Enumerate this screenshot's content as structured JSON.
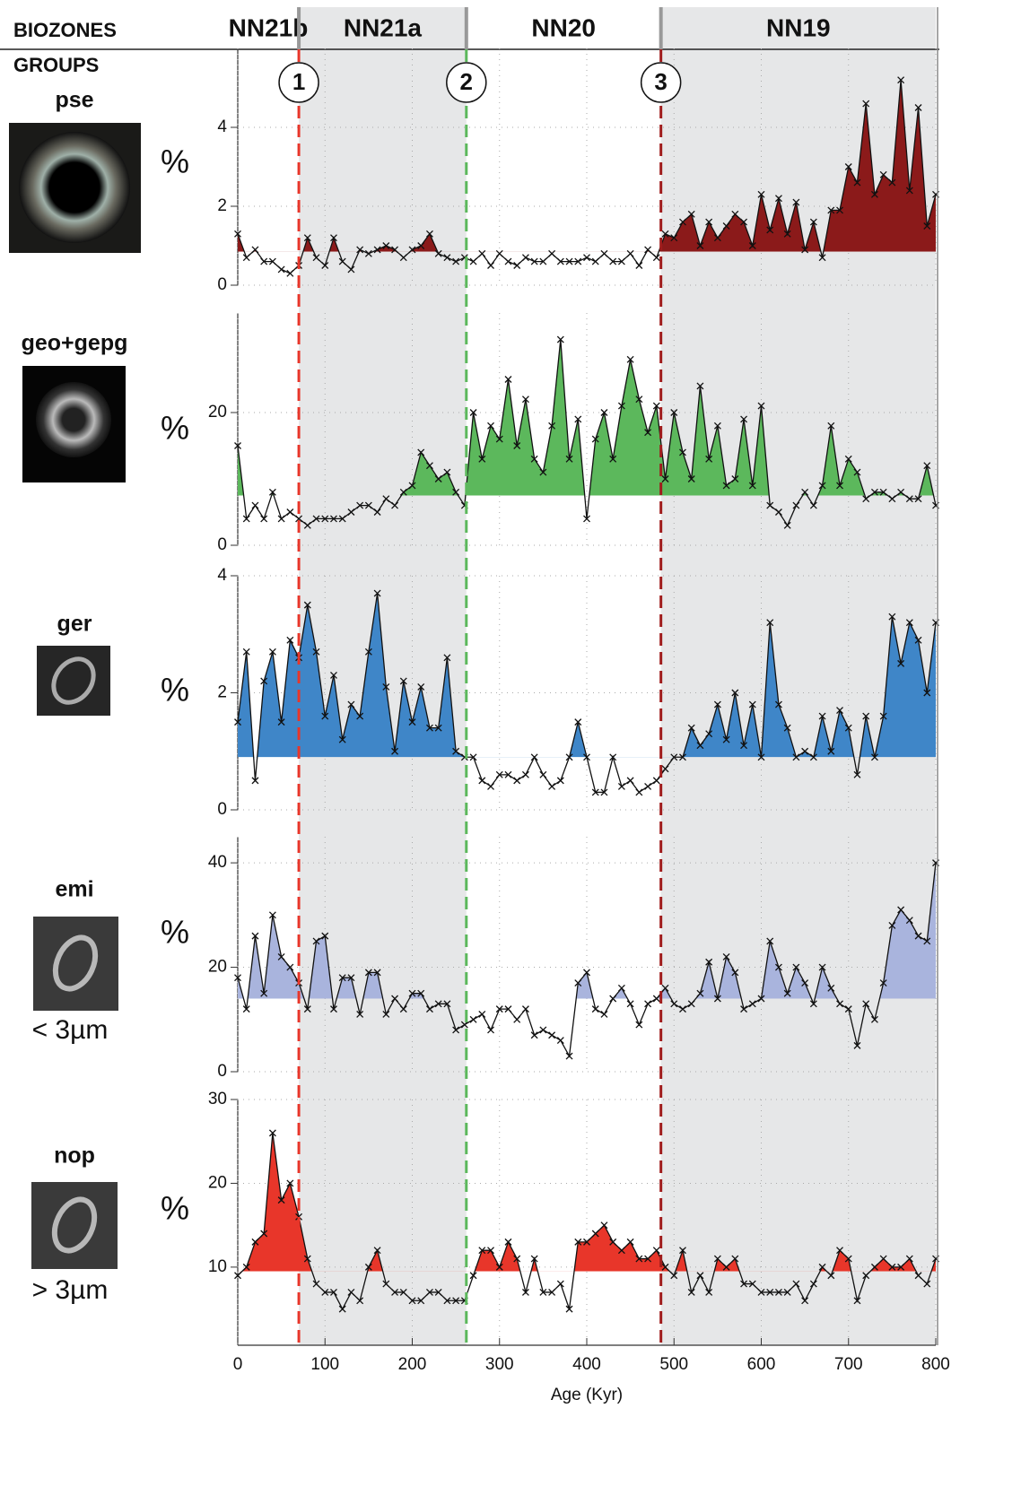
{
  "biozones_label": "BIOZONES",
  "groups_label": "GROUPS",
  "biozones": [
    {
      "label": "NN21b",
      "start": 0,
      "end": 70,
      "shaded": false
    },
    {
      "label": "NN21a",
      "start": 70,
      "end": 262,
      "shaded": true
    },
    {
      "label": "NN20",
      "start": 262,
      "end": 485,
      "shaded": false
    },
    {
      "label": "NN19",
      "start": 485,
      "end": 800,
      "shaded": true
    }
  ],
  "events": [
    {
      "label": "1",
      "age": 70,
      "color": "#e8362a"
    },
    {
      "label": "2",
      "age": 262,
      "color": "#5cb85c"
    },
    {
      "label": "3",
      "age": 485,
      "color": "#a01c1c"
    }
  ],
  "chart_data": [
    {
      "type": "line",
      "title": "pse",
      "ylabel": "%",
      "color": "#8b1a1a",
      "fill_baseline": 0.85,
      "xlim": [
        0,
        800
      ],
      "ylim": [
        0,
        6
      ],
      "yticks": [
        0,
        2,
        4
      ],
      "grid": true,
      "x": [
        0,
        10,
        20,
        30,
        40,
        50,
        60,
        70,
        80,
        90,
        100,
        110,
        120,
        130,
        140,
        150,
        160,
        170,
        180,
        190,
        200,
        210,
        220,
        230,
        240,
        250,
        260,
        270,
        280,
        290,
        300,
        310,
        320,
        330,
        340,
        350,
        360,
        370,
        380,
        390,
        400,
        410,
        420,
        430,
        440,
        450,
        460,
        470,
        480,
        490,
        500,
        510,
        520,
        530,
        540,
        550,
        560,
        570,
        580,
        590,
        600,
        610,
        620,
        630,
        640,
        650,
        660,
        670,
        680,
        690,
        700,
        710,
        720,
        730,
        740,
        750,
        760,
        770,
        780,
        790,
        800
      ],
      "values": [
        1.3,
        0.7,
        0.9,
        0.6,
        0.6,
        0.4,
        0.3,
        0.5,
        1.2,
        0.7,
        0.5,
        1.2,
        0.6,
        0.4,
        0.9,
        0.8,
        0.9,
        1.0,
        0.9,
        0.7,
        0.9,
        1.0,
        1.3,
        0.8,
        0.7,
        0.6,
        0.7,
        0.6,
        0.8,
        0.5,
        0.8,
        0.6,
        0.5,
        0.7,
        0.6,
        0.6,
        0.8,
        0.6,
        0.6,
        0.6,
        0.7,
        0.6,
        0.8,
        0.6,
        0.6,
        0.8,
        0.5,
        0.9,
        0.7,
        1.3,
        1.2,
        1.6,
        1.8,
        1.0,
        1.6,
        1.2,
        1.5,
        1.8,
        1.6,
        1.0,
        2.3,
        1.4,
        2.2,
        1.3,
        2.1,
        0.9,
        1.6,
        0.7,
        1.9,
        1.9,
        3.0,
        2.6,
        4.6,
        2.3,
        2.8,
        2.6,
        5.2,
        2.4,
        4.5,
        1.5,
        2.3
      ]
    },
    {
      "type": "line",
      "title": "geo+gepg",
      "ylabel": "%",
      "color": "#5cb85c",
      "fill_baseline": 7.5,
      "xlim": [
        0,
        800
      ],
      "ylim": [
        0,
        35
      ],
      "yticks": [
        0,
        20
      ],
      "grid": true,
      "x": [
        0,
        10,
        20,
        30,
        40,
        50,
        60,
        70,
        80,
        90,
        100,
        110,
        120,
        130,
        140,
        150,
        160,
        170,
        180,
        190,
        200,
        210,
        220,
        230,
        240,
        250,
        260,
        270,
        280,
        290,
        300,
        310,
        320,
        330,
        340,
        350,
        360,
        370,
        380,
        390,
        400,
        410,
        420,
        430,
        440,
        450,
        460,
        470,
        480,
        490,
        500,
        510,
        520,
        530,
        540,
        550,
        560,
        570,
        580,
        590,
        600,
        610,
        620,
        630,
        640,
        650,
        660,
        670,
        680,
        690,
        700,
        710,
        720,
        730,
        740,
        750,
        760,
        770,
        780,
        790,
        800
      ],
      "values": [
        15,
        4,
        6,
        4,
        8,
        4,
        5,
        4,
        3,
        4,
        4,
        4,
        4,
        5,
        6,
        6,
        5,
        7,
        6,
        8,
        9,
        14,
        12,
        10,
        11,
        8,
        6,
        20,
        13,
        18,
        16,
        25,
        15,
        22,
        13,
        11,
        18,
        31,
        13,
        19,
        4,
        16,
        20,
        13,
        21,
        28,
        22,
        17,
        21,
        10,
        20,
        14,
        10,
        24,
        13,
        18,
        9,
        10,
        19,
        9,
        21,
        6,
        5,
        3,
        6,
        8,
        6,
        9,
        18,
        9,
        13,
        11,
        7,
        8,
        8,
        7,
        8,
        7,
        7,
        12,
        6
      ]
    },
    {
      "type": "line",
      "title": "ger",
      "ylabel": "%",
      "color": "#3f86c8",
      "fill_baseline": 0.9,
      "xlim": [
        0,
        800
      ],
      "ylim": [
        0,
        4
      ],
      "yticks": [
        0,
        2,
        4
      ],
      "grid": true,
      "x": [
        0,
        10,
        20,
        30,
        40,
        50,
        60,
        70,
        80,
        90,
        100,
        110,
        120,
        130,
        140,
        150,
        160,
        170,
        180,
        190,
        200,
        210,
        220,
        230,
        240,
        250,
        260,
        270,
        280,
        290,
        300,
        310,
        320,
        330,
        340,
        350,
        360,
        370,
        380,
        390,
        400,
        410,
        420,
        430,
        440,
        450,
        460,
        470,
        480,
        490,
        500,
        510,
        520,
        530,
        540,
        550,
        560,
        570,
        580,
        590,
        600,
        610,
        620,
        630,
        640,
        650,
        660,
        670,
        680,
        690,
        700,
        710,
        720,
        730,
        740,
        750,
        760,
        770,
        780,
        790,
        800
      ],
      "values": [
        1.5,
        2.7,
        0.5,
        2.2,
        2.7,
        1.5,
        2.9,
        2.6,
        3.5,
        2.7,
        1.6,
        2.3,
        1.2,
        1.8,
        1.6,
        2.7,
        3.7,
        2.1,
        1.0,
        2.2,
        1.5,
        2.1,
        1.4,
        1.4,
        2.6,
        1.0,
        0.9,
        0.9,
        0.5,
        0.4,
        0.6,
        0.6,
        0.5,
        0.6,
        0.9,
        0.6,
        0.4,
        0.5,
        0.9,
        1.5,
        0.9,
        0.3,
        0.3,
        0.9,
        0.4,
        0.5,
        0.3,
        0.4,
        0.5,
        0.7,
        0.9,
        0.9,
        1.4,
        1.1,
        1.3,
        1.8,
        1.2,
        2.0,
        1.1,
        1.8,
        0.9,
        3.2,
        1.8,
        1.4,
        0.9,
        1.0,
        0.9,
        1.6,
        1.0,
        1.7,
        1.4,
        0.6,
        1.6,
        0.9,
        1.6,
        3.3,
        2.5,
        3.2,
        2.9,
        2.0,
        3.2
      ]
    },
    {
      "type": "line",
      "title": "emi",
      "subtitle": "< 3µm",
      "ylabel": "%",
      "color": "#a9b4dd",
      "fill_baseline": 14,
      "xlim": [
        0,
        800
      ],
      "ylim": [
        0,
        45
      ],
      "yticks": [
        0,
        20,
        40
      ],
      "grid": true,
      "x": [
        0,
        10,
        20,
        30,
        40,
        50,
        60,
        70,
        80,
        90,
        100,
        110,
        120,
        130,
        140,
        150,
        160,
        170,
        180,
        190,
        200,
        210,
        220,
        230,
        240,
        250,
        260,
        270,
        280,
        290,
        300,
        310,
        320,
        330,
        340,
        350,
        360,
        370,
        380,
        390,
        400,
        410,
        420,
        430,
        440,
        450,
        460,
        470,
        480,
        490,
        500,
        510,
        520,
        530,
        540,
        550,
        560,
        570,
        580,
        590,
        600,
        610,
        620,
        630,
        640,
        650,
        660,
        670,
        680,
        690,
        700,
        710,
        720,
        730,
        740,
        750,
        760,
        770,
        780,
        790,
        800
      ],
      "values": [
        18,
        12,
        26,
        15,
        30,
        22,
        20,
        17,
        12,
        25,
        26,
        12,
        18,
        18,
        11,
        19,
        19,
        11,
        14,
        12,
        15,
        15,
        12,
        13,
        13,
        8,
        9,
        10,
        11,
        8,
        12,
        12,
        10,
        12,
        7,
        8,
        7,
        6,
        3,
        17,
        19,
        12,
        11,
        14,
        16,
        13,
        9,
        13,
        14,
        16,
        13,
        12,
        13,
        15,
        21,
        14,
        22,
        19,
        12,
        13,
        14,
        25,
        20,
        15,
        20,
        17,
        13,
        20,
        16,
        13,
        12,
        5,
        13,
        10,
        17,
        28,
        31,
        29,
        26,
        25,
        40
      ]
    },
    {
      "type": "line",
      "title": "nop",
      "subtitle": "> 3µm",
      "ylabel": "%",
      "color": "#e8362a",
      "fill_baseline": 9.5,
      "xlim": [
        0,
        800
      ],
      "ylim": [
        1,
        30
      ],
      "yticks": [
        10,
        20,
        30
      ],
      "grid": true,
      "xticks": [
        0,
        100,
        200,
        300,
        400,
        500,
        600,
        700,
        800
      ],
      "xlabel": "Age (Kyr)",
      "x": [
        0,
        10,
        20,
        30,
        40,
        50,
        60,
        70,
        80,
        90,
        100,
        110,
        120,
        130,
        140,
        150,
        160,
        170,
        180,
        190,
        200,
        210,
        220,
        230,
        240,
        250,
        260,
        270,
        280,
        290,
        300,
        310,
        320,
        330,
        340,
        350,
        360,
        370,
        380,
        390,
        400,
        410,
        420,
        430,
        440,
        450,
        460,
        470,
        480,
        490,
        500,
        510,
        520,
        530,
        540,
        550,
        560,
        570,
        580,
        590,
        600,
        610,
        620,
        630,
        640,
        650,
        660,
        670,
        680,
        690,
        700,
        710,
        720,
        730,
        740,
        750,
        760,
        770,
        780,
        790,
        800
      ],
      "values": [
        9,
        10,
        13,
        14,
        26,
        18,
        20,
        16,
        11,
        8,
        7,
        7,
        5,
        7,
        6,
        10,
        12,
        8,
        7,
        7,
        6,
        6,
        7,
        7,
        6,
        6,
        6,
        9,
        12,
        12,
        10,
        13,
        11,
        7,
        11,
        7,
        7,
        8,
        5,
        13,
        13,
        14,
        15,
        13,
        12,
        13,
        11,
        11,
        12,
        10,
        9,
        12,
        7,
        9,
        7,
        11,
        10,
        11,
        8,
        8,
        7,
        7,
        7,
        7,
        8,
        6,
        8,
        10,
        9,
        12,
        11,
        6,
        9,
        10,
        11,
        10,
        10,
        11,
        9,
        8,
        11
      ]
    }
  ]
}
